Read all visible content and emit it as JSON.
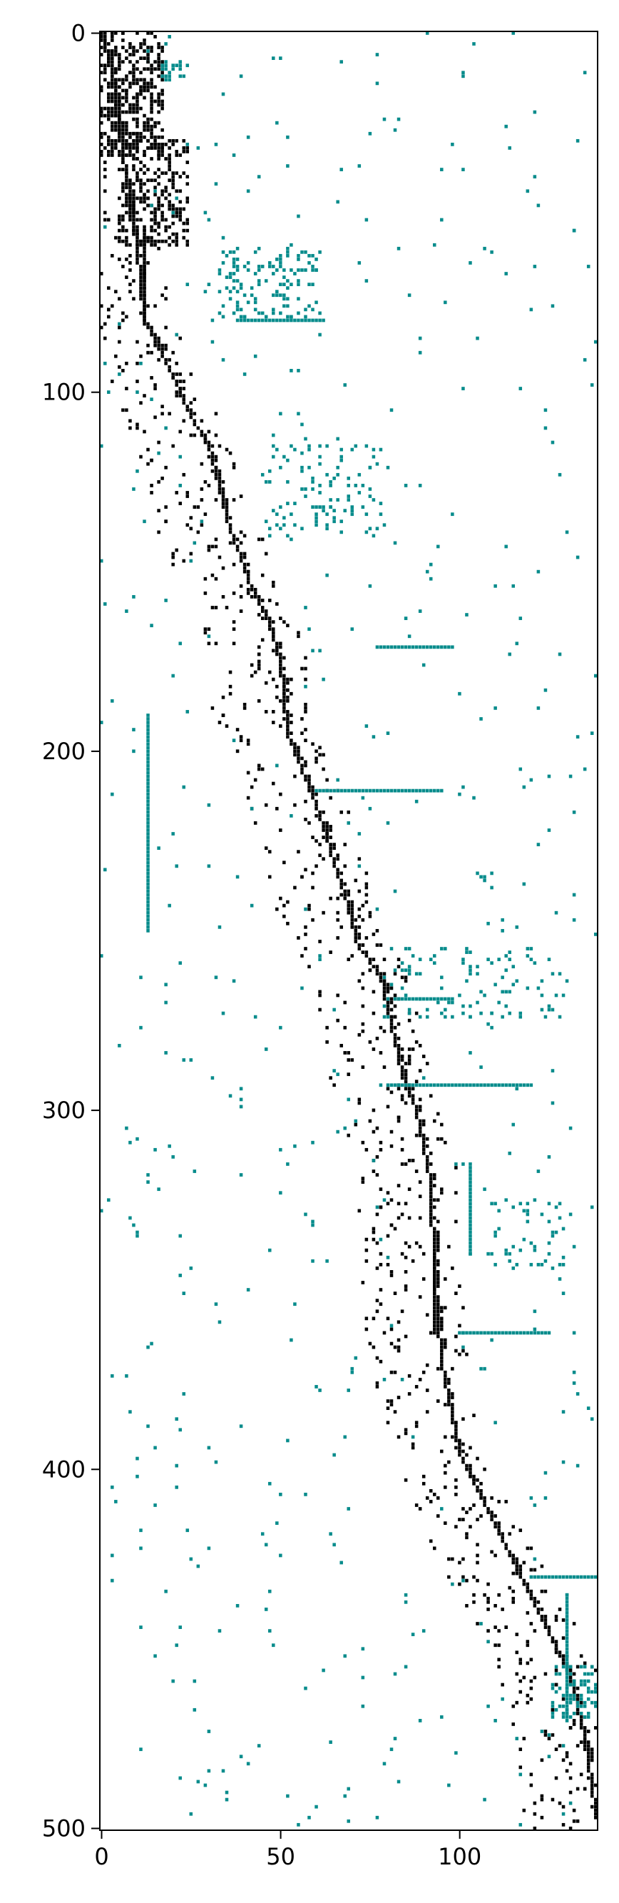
{
  "chart_data": {
    "type": "heatmap",
    "title": "",
    "xlabel": "",
    "ylabel": "",
    "xlim": [
      0,
      139
    ],
    "ylim": [
      501,
      0
    ],
    "x_ticks": [
      0,
      50,
      100
    ],
    "y_ticks": [
      0,
      100,
      200,
      300,
      400,
      500
    ],
    "grid": false,
    "legend": "none",
    "description": "Sparse matrix spy plot (~139 columns x ~501 rows). Two mark classes: black (nonzeros near main staircase) and teal (off-band nonzeros).",
    "colors": {
      "diagonal": "#000000",
      "offband": "#088c8c",
      "background": "#ffffff"
    },
    "diagonal_profile": [
      [
        0,
        0
      ],
      [
        10,
        3
      ],
      [
        20,
        4
      ],
      [
        40,
        7
      ],
      [
        60,
        10
      ],
      [
        80,
        12
      ],
      [
        95,
        20
      ],
      [
        105,
        24
      ],
      [
        115,
        30
      ],
      [
        135,
        35
      ],
      [
        155,
        42
      ],
      [
        165,
        47
      ],
      [
        175,
        50
      ],
      [
        195,
        52
      ],
      [
        215,
        60
      ],
      [
        240,
        68
      ],
      [
        255,
        72
      ],
      [
        262,
        78
      ],
      [
        290,
        84
      ],
      [
        300,
        88
      ],
      [
        320,
        92
      ],
      [
        345,
        93
      ],
      [
        370,
        95
      ],
      [
        395,
        100
      ],
      [
        420,
        112
      ],
      [
        440,
        122
      ],
      [
        455,
        130
      ],
      [
        475,
        135
      ],
      [
        501,
        139
      ]
    ],
    "dense_blocks": [
      {
        "kind": "diagonal",
        "row_start": 0,
        "row_end": 35,
        "col_start": 0,
        "col_end": 18,
        "density": 0.45
      },
      {
        "kind": "diagonal",
        "row_start": 30,
        "row_end": 60,
        "col_start": 5,
        "col_end": 25,
        "density": 0.35
      },
      {
        "kind": "offband",
        "row_start": 8,
        "row_end": 14,
        "col_start": 17,
        "col_end": 23,
        "density": 0.5
      },
      {
        "kind": "offband",
        "row_start": 60,
        "row_end": 80,
        "col_start": 33,
        "col_end": 62,
        "density": 0.22
      },
      {
        "kind": "offband",
        "row_start": 115,
        "row_end": 140,
        "col_start": 45,
        "col_end": 80,
        "density": 0.1
      },
      {
        "kind": "offband",
        "row_start": 255,
        "row_end": 275,
        "col_start": 77,
        "col_end": 130,
        "density": 0.1
      },
      {
        "kind": "offband",
        "row_start": 325,
        "row_end": 345,
        "col_start": 108,
        "col_end": 130,
        "density": 0.12
      },
      {
        "kind": "offband",
        "row_start": 455,
        "row_end": 470,
        "col_start": 126,
        "col_end": 139,
        "density": 0.3
      }
    ],
    "horizontal_lines": [
      {
        "row": 171,
        "col_start": 77,
        "col_end": 98
      },
      {
        "row": 269,
        "col_start": 82,
        "col_end": 98
      },
      {
        "row": 293,
        "col_start": 80,
        "col_end": 120
      },
      {
        "row": 211,
        "col_start": 60,
        "col_end": 95
      },
      {
        "row": 80,
        "col_start": 38,
        "col_end": 62
      },
      {
        "row": 430,
        "col_start": 120,
        "col_end": 138
      },
      {
        "row": 362,
        "col_start": 100,
        "col_end": 125
      }
    ],
    "vertical_lines": [
      {
        "col": 12,
        "row_start": 55,
        "row_end": 81,
        "kind": "diagonal"
      },
      {
        "col": 103,
        "row_start": 315,
        "row_end": 340,
        "kind": "offband"
      },
      {
        "col": 93,
        "row_start": 340,
        "row_end": 362,
        "kind": "diagonal"
      },
      {
        "col": 130,
        "row_start": 435,
        "row_end": 470,
        "kind": "offband"
      },
      {
        "col": 13,
        "row_start": 190,
        "row_end": 250,
        "kind": "offband"
      }
    ]
  }
}
